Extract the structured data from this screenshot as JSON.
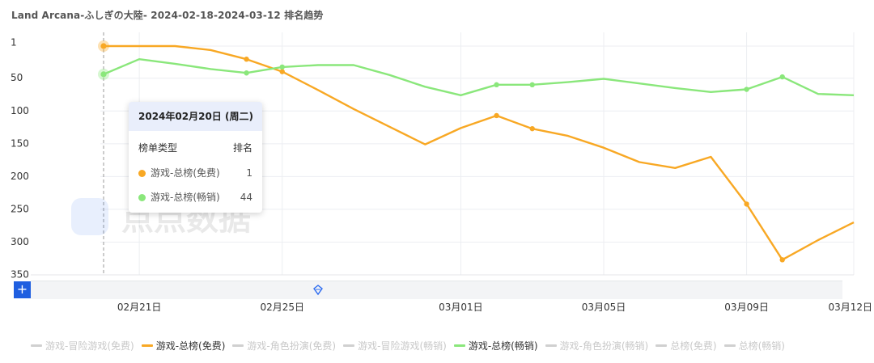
{
  "title": "Land Arcana-ふしぎの大陸- 2024-02-18-2024-03-12 排名趋势",
  "watermark": "点点数据",
  "tooltip": {
    "date": "2024年02月20日 (周二)",
    "col_type": "榜单类型",
    "col_rank": "排名",
    "rows": [
      {
        "label": "游戏-总榜(免费)",
        "value": "1",
        "color": "#f8a824"
      },
      {
        "label": "游戏-总榜(畅销)",
        "value": "44",
        "color": "#8ae77b"
      }
    ]
  },
  "zoom_icon": "plus-icon",
  "slider_icon": "diamond-handle-icon",
  "legend": [
    {
      "label": "游戏-冒险游戏(免费)",
      "color": "#d0d0d0",
      "active": false
    },
    {
      "label": "游戏-总榜(免费)",
      "color": "#f8a824",
      "active": true
    },
    {
      "label": "游戏-角色扮演(免费)",
      "color": "#d0d0d0",
      "active": false
    },
    {
      "label": "游戏-冒险游戏(畅销)",
      "color": "#d0d0d0",
      "active": false
    },
    {
      "label": "游戏-总榜(畅销)",
      "color": "#8ae77b",
      "active": true
    },
    {
      "label": "游戏-角色扮演(畅销)",
      "color": "#d0d0d0",
      "active": false
    },
    {
      "label": "总榜(免费)",
      "color": "#d0d0d0",
      "active": false
    },
    {
      "label": "总榜(畅销)",
      "color": "#d0d0d0",
      "active": false
    }
  ],
  "chart_data": {
    "type": "line",
    "title": "Land Arcana-ふしぎの大陸- 2024-02-18-2024-03-12 排名趋势",
    "x_start": "2024-02-20",
    "x_end": "2024-03-12",
    "x_ticks": [
      {
        "date": "2024-02-21",
        "label": "02月21日"
      },
      {
        "date": "2024-02-25",
        "label": "02月25日"
      },
      {
        "date": "2024-03-01",
        "label": "03月01日"
      },
      {
        "date": "2024-03-05",
        "label": "03月05日"
      },
      {
        "date": "2024-03-09",
        "label": "03月09日"
      },
      {
        "date": "2024-03-12",
        "label": "03月12日"
      }
    ],
    "y_inverted": true,
    "y_ticks": [
      {
        "value": 1,
        "label": "1"
      },
      {
        "value": 50,
        "label": "50"
      },
      {
        "value": 100,
        "label": "100"
      },
      {
        "value": 150,
        "label": "150"
      },
      {
        "value": 200,
        "label": "200"
      },
      {
        "value": 250,
        "label": "250"
      },
      {
        "value": 300,
        "label": "300"
      },
      {
        "value": 350,
        "label": "350"
      }
    ],
    "ylim": [
      1,
      350
    ],
    "hover_date": "2024-02-20",
    "series": [
      {
        "name": "游戏-总榜(免费)",
        "color": "#f8a824",
        "points": [
          [
            "2024-02-20",
            1
          ],
          [
            "2024-02-21",
            1
          ],
          [
            "2024-02-22",
            1
          ],
          [
            "2024-02-23",
            7
          ],
          [
            "2024-02-24",
            21
          ],
          [
            "2024-02-25",
            40
          ],
          [
            "2024-02-26",
            68
          ],
          [
            "2024-02-27",
            97
          ],
          [
            "2024-02-28",
            124
          ],
          [
            "2024-02-29",
            151
          ],
          [
            "2024-03-01",
            126
          ],
          [
            "2024-03-02",
            107
          ],
          [
            "2024-03-03",
            127
          ],
          [
            "2024-03-04",
            138
          ],
          [
            "2024-03-05",
            156
          ],
          [
            "2024-03-06",
            178
          ],
          [
            "2024-03-07",
            187
          ],
          [
            "2024-03-08",
            170
          ],
          [
            "2024-03-09",
            242
          ],
          [
            "2024-03-10",
            327
          ],
          [
            "2024-03-11",
            297
          ],
          [
            "2024-03-12",
            270
          ]
        ],
        "markers": [
          "2024-02-24",
          "2024-02-25",
          "2024-03-02",
          "2024-03-03",
          "2024-03-09",
          "2024-03-10"
        ]
      },
      {
        "name": "游戏-总榜(畅销)",
        "color": "#8ae77b",
        "points": [
          [
            "2024-02-20",
            44
          ],
          [
            "2024-02-21",
            21
          ],
          [
            "2024-02-22",
            28
          ],
          [
            "2024-02-23",
            36
          ],
          [
            "2024-02-24",
            42
          ],
          [
            "2024-02-25",
            33
          ],
          [
            "2024-02-26",
            30
          ],
          [
            "2024-02-27",
            30
          ],
          [
            "2024-02-28",
            45
          ],
          [
            "2024-02-29",
            63
          ],
          [
            "2024-03-01",
            76
          ],
          [
            "2024-03-02",
            60
          ],
          [
            "2024-03-03",
            60
          ],
          [
            "2024-03-04",
            56
          ],
          [
            "2024-03-05",
            51
          ],
          [
            "2024-03-06",
            58
          ],
          [
            "2024-03-07",
            65
          ],
          [
            "2024-03-08",
            71
          ],
          [
            "2024-03-09",
            67
          ],
          [
            "2024-03-10",
            48
          ],
          [
            "2024-03-11",
            74
          ],
          [
            "2024-03-12",
            76
          ]
        ],
        "markers": [
          "2024-02-24",
          "2024-02-25",
          "2024-03-02",
          "2024-03-03",
          "2024-03-09",
          "2024-03-10"
        ]
      }
    ]
  }
}
